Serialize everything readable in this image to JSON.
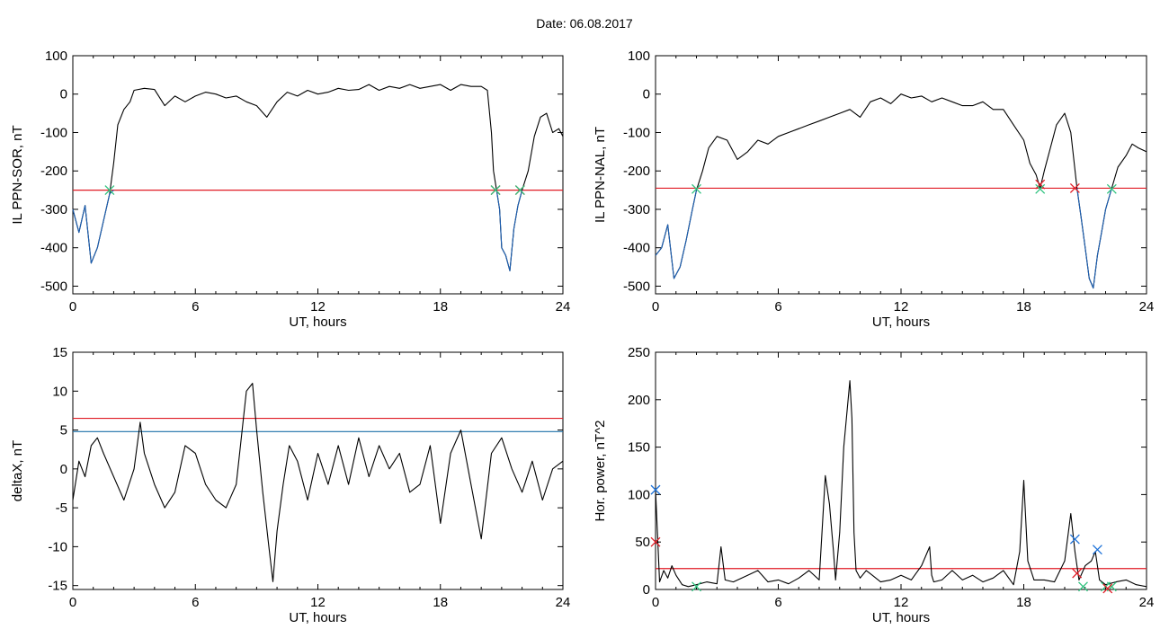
{
  "title": "Date:  06.08.2017",
  "chart_data": [
    {
      "id": "p1",
      "type": "line",
      "xlabel": "UT, hours",
      "ylabel": "IL PPN-SOR, nT",
      "xlim": [
        0,
        24
      ],
      "ylim": [
        -520,
        100
      ],
      "xticks": [
        0,
        6,
        12,
        18,
        24
      ],
      "yticks": [
        100,
        0,
        -100,
        -200,
        -300,
        -400,
        -500
      ],
      "series": [
        {
          "color": "#000000",
          "x": [
            0,
            0.3,
            0.6,
            0.9,
            1.2,
            1.5,
            1.8,
            2.0,
            2.2,
            2.5,
            2.8,
            3.0,
            3.5,
            4.0,
            4.5,
            5.0,
            5.5,
            6.0,
            6.5,
            7.0,
            7.5,
            8.0,
            8.5,
            9.0,
            9.5,
            10.0,
            10.5,
            11.0,
            11.5,
            12.0,
            12.5,
            13.0,
            13.5,
            14.0,
            14.5,
            15.0,
            15.5,
            16.0,
            16.5,
            17.0,
            17.5,
            18.0,
            18.5,
            19.0,
            19.5,
            20.0,
            20.3,
            20.5,
            20.6,
            20.75,
            20.9,
            21.0,
            21.2,
            21.4,
            21.6,
            21.8,
            22.0,
            22.3,
            22.6,
            22.9,
            23.2,
            23.5,
            23.8,
            24.0
          ],
          "y": [
            -300,
            -360,
            -290,
            -440,
            -400,
            -330,
            -260,
            -180,
            -80,
            -40,
            -20,
            10,
            15,
            12,
            -30,
            -5,
            -20,
            -5,
            5,
            0,
            -10,
            -5,
            -20,
            -30,
            -60,
            -20,
            5,
            -5,
            10,
            0,
            5,
            15,
            10,
            12,
            25,
            10,
            20,
            15,
            25,
            15,
            20,
            25,
            10,
            25,
            20,
            20,
            10,
            -100,
            -200,
            -250,
            -300,
            -400,
            -420,
            -460,
            -350,
            -290,
            -250,
            -200,
            -110,
            -60,
            -50,
            -100,
            -90,
            -110
          ]
        },
        {
          "color": "#1a5fb4",
          "x": [
            0,
            0.3,
            0.6,
            0.9,
            1.2,
            1.5,
            1.8,
            2.0
          ],
          "y": [
            -300,
            -360,
            -290,
            -440,
            -400,
            -330,
            -260,
            -250
          ]
        },
        {
          "color": "#1a5fb4",
          "x": [
            20.75,
            20.9,
            21.0,
            21.2,
            21.4,
            21.6,
            21.8,
            22.0
          ],
          "y": [
            -250,
            -300,
            -400,
            -420,
            -460,
            -350,
            -290,
            -250
          ]
        }
      ],
      "hlines": [
        {
          "y": -250,
          "color": "#e01b24"
        }
      ],
      "markers": [
        {
          "x": 1.8,
          "y": -250,
          "color": "#2ec27e"
        },
        {
          "x": 20.7,
          "y": -250,
          "color": "#e01b24"
        },
        {
          "x": 20.7,
          "y": -250,
          "color": "#2ec27e"
        },
        {
          "x": 21.9,
          "y": -250,
          "color": "#e01b24"
        },
        {
          "x": 21.9,
          "y": -250,
          "color": "#2ec27e"
        }
      ]
    },
    {
      "id": "p2",
      "type": "line",
      "xlabel": "UT, hours",
      "ylabel": "IL PPN-NAL, nT",
      "xlim": [
        0,
        24
      ],
      "ylim": [
        -520,
        100
      ],
      "xticks": [
        0,
        6,
        12,
        18,
        24
      ],
      "yticks": [
        100,
        0,
        -100,
        -200,
        -300,
        -400,
        -500
      ],
      "series": [
        {
          "color": "#000000",
          "x": [
            0,
            0.3,
            0.6,
            0.9,
            1.2,
            1.5,
            1.8,
            2.0,
            2.3,
            2.6,
            3.0,
            3.5,
            4.0,
            4.5,
            5.0,
            5.5,
            6.0,
            6.5,
            7.0,
            7.5,
            8.0,
            8.5,
            9.0,
            9.5,
            10.0,
            10.5,
            11.0,
            11.5,
            12.0,
            12.5,
            13.0,
            13.5,
            14.0,
            14.5,
            15.0,
            15.5,
            16.0,
            16.5,
            17.0,
            17.5,
            18.0,
            18.3,
            18.6,
            18.8,
            19.0,
            19.3,
            19.6,
            20.0,
            20.3,
            20.6,
            20.8,
            21.0,
            21.2,
            21.4,
            21.6,
            21.8,
            22.0,
            22.3,
            22.6,
            23.0,
            23.3,
            23.6,
            24.0
          ],
          "y": [
            -420,
            -400,
            -340,
            -480,
            -450,
            -380,
            -300,
            -250,
            -200,
            -140,
            -110,
            -120,
            -170,
            -150,
            -120,
            -130,
            -110,
            -100,
            -90,
            -80,
            -70,
            -60,
            -50,
            -40,
            -60,
            -20,
            -10,
            -25,
            0,
            -10,
            -5,
            -20,
            -10,
            -20,
            -30,
            -30,
            -20,
            -40,
            -40,
            -80,
            -120,
            -180,
            -210,
            -245,
            -200,
            -140,
            -80,
            -50,
            -100,
            -245,
            -320,
            -400,
            -480,
            -505,
            -420,
            -360,
            -300,
            -245,
            -190,
            -160,
            -130,
            -140,
            -150
          ]
        },
        {
          "color": "#1a5fb4",
          "x": [
            0,
            0.3,
            0.6,
            0.9,
            1.2,
            1.5,
            1.8,
            2.0
          ],
          "y": [
            -420,
            -400,
            -340,
            -480,
            -450,
            -380,
            -300,
            -250
          ]
        },
        {
          "color": "#1a5fb4",
          "x": [
            20.6,
            20.8,
            21.0,
            21.2,
            21.4,
            21.6,
            21.8,
            22.0,
            22.3
          ],
          "y": [
            -245,
            -320,
            -400,
            -480,
            -505,
            -420,
            -360,
            -300,
            -245
          ]
        }
      ],
      "hlines": [
        {
          "y": -245,
          "color": "#e01b24"
        }
      ],
      "markers": [
        {
          "x": 2.0,
          "y": -247,
          "color": "#2ec27e"
        },
        {
          "x": 18.8,
          "y": -235,
          "color": "#e01b24"
        },
        {
          "x": 18.8,
          "y": -247,
          "color": "#2ec27e"
        },
        {
          "x": 20.5,
          "y": -245,
          "color": "#e01b24"
        },
        {
          "x": 22.3,
          "y": -247,
          "color": "#2ec27e"
        }
      ]
    },
    {
      "id": "p3",
      "type": "line",
      "xlabel": "UT, hours",
      "ylabel": "deltaX, nT",
      "xlim": [
        0,
        24
      ],
      "ylim": [
        -15.5,
        15
      ],
      "xticks": [
        0,
        6,
        12,
        18,
        24
      ],
      "yticks": [
        15,
        10,
        5,
        0,
        -5,
        -10,
        -15
      ],
      "series": [
        {
          "color": "#000000",
          "x": [
            0,
            0.3,
            0.6,
            0.9,
            1.2,
            1.5,
            2.0,
            2.5,
            3.0,
            3.3,
            3.5,
            4.0,
            4.5,
            5.0,
            5.5,
            6.0,
            6.5,
            7.0,
            7.5,
            8.0,
            8.5,
            8.8,
            9.0,
            9.3,
            9.6,
            9.8,
            10.0,
            10.3,
            10.6,
            11.0,
            11.5,
            12.0,
            12.5,
            13.0,
            13.5,
            14.0,
            14.5,
            15.0,
            15.5,
            16.0,
            16.5,
            17.0,
            17.5,
            18.0,
            18.5,
            19.0,
            19.5,
            20.0,
            20.5,
            21.0,
            21.5,
            22.0,
            22.5,
            23.0,
            23.5,
            24.0
          ],
          "y": [
            -4,
            1,
            -1,
            3,
            4,
            2,
            -1,
            -4,
            0,
            6,
            2,
            -2,
            -5,
            -3,
            3,
            2,
            -2,
            -4,
            -5,
            -2,
            10,
            11,
            5,
            -3,
            -10,
            -14.5,
            -8,
            -2,
            3,
            1,
            -4,
            2,
            -2,
            3,
            -2,
            4,
            -1,
            3,
            0,
            2,
            -3,
            -2,
            3,
            -7,
            2,
            5,
            -2,
            -9,
            2,
            4,
            0,
            -3,
            1,
            -4,
            0,
            1
          ]
        }
      ],
      "hlines": [
        {
          "y": 6.5,
          "color": "#e01b24"
        },
        {
          "y": 4.8,
          "color": "#1c71a8"
        }
      ],
      "markers": []
    },
    {
      "id": "p4",
      "type": "line",
      "xlabel": "UT, hours",
      "ylabel": "Hor. power, nT^2",
      "xlim": [
        0,
        24
      ],
      "ylim": [
        0,
        250
      ],
      "xticks": [
        0,
        6,
        12,
        18,
        24
      ],
      "yticks": [
        250,
        200,
        150,
        100,
        50,
        0
      ],
      "series": [
        {
          "color": "#000000",
          "x": [
            0,
            0.2,
            0.4,
            0.6,
            0.8,
            1.0,
            1.3,
            1.6,
            2.0,
            2.5,
            3.0,
            3.2,
            3.4,
            3.8,
            4.5,
            5.0,
            5.5,
            6.0,
            6.5,
            7.0,
            7.5,
            8.0,
            8.3,
            8.5,
            8.7,
            8.8,
            9.0,
            9.2,
            9.5,
            9.6,
            9.7,
            9.8,
            10.0,
            10.3,
            10.6,
            11.0,
            11.5,
            12.0,
            12.5,
            13.0,
            13.4,
            13.5,
            13.6,
            14.0,
            14.5,
            15.0,
            15.5,
            16.0,
            16.5,
            17.0,
            17.5,
            17.8,
            18.0,
            18.2,
            18.5,
            19.0,
            19.5,
            20.0,
            20.3,
            20.5,
            20.7,
            21.0,
            21.3,
            21.5,
            21.7,
            22.0,
            22.5,
            23.0,
            23.5,
            24.0
          ],
          "y": [
            105,
            8,
            20,
            12,
            25,
            15,
            5,
            3,
            5,
            8,
            6,
            45,
            10,
            8,
            15,
            20,
            8,
            10,
            6,
            12,
            20,
            10,
            120,
            90,
            40,
            10,
            60,
            150,
            220,
            180,
            60,
            20,
            12,
            20,
            15,
            8,
            10,
            15,
            10,
            25,
            45,
            15,
            8,
            10,
            20,
            10,
            15,
            8,
            12,
            20,
            5,
            40,
            115,
            30,
            10,
            10,
            8,
            30,
            80,
            40,
            10,
            25,
            30,
            40,
            10,
            5,
            8,
            10,
            5,
            3
          ]
        }
      ],
      "hlines": [
        {
          "y": 22,
          "color": "#e01b24"
        }
      ],
      "markers": [
        {
          "x": 0.0,
          "y": 105,
          "color": "#1c71d8"
        },
        {
          "x": 0.0,
          "y": 50,
          "color": "#e01b24"
        },
        {
          "x": 2.0,
          "y": 3,
          "color": "#2ec27e"
        },
        {
          "x": 20.5,
          "y": 53,
          "color": "#1c71d8"
        },
        {
          "x": 20.6,
          "y": 17,
          "color": "#e01b24"
        },
        {
          "x": 20.9,
          "y": 3,
          "color": "#2ec27e"
        },
        {
          "x": 21.6,
          "y": 42,
          "color": "#1c71d8"
        },
        {
          "x": 22.0,
          "y": 3,
          "color": "#2ec27e"
        },
        {
          "x": 22.3,
          "y": 3,
          "color": "#2ec27e"
        },
        {
          "x": 22.1,
          "y": 1,
          "color": "#e01b24"
        }
      ]
    }
  ]
}
